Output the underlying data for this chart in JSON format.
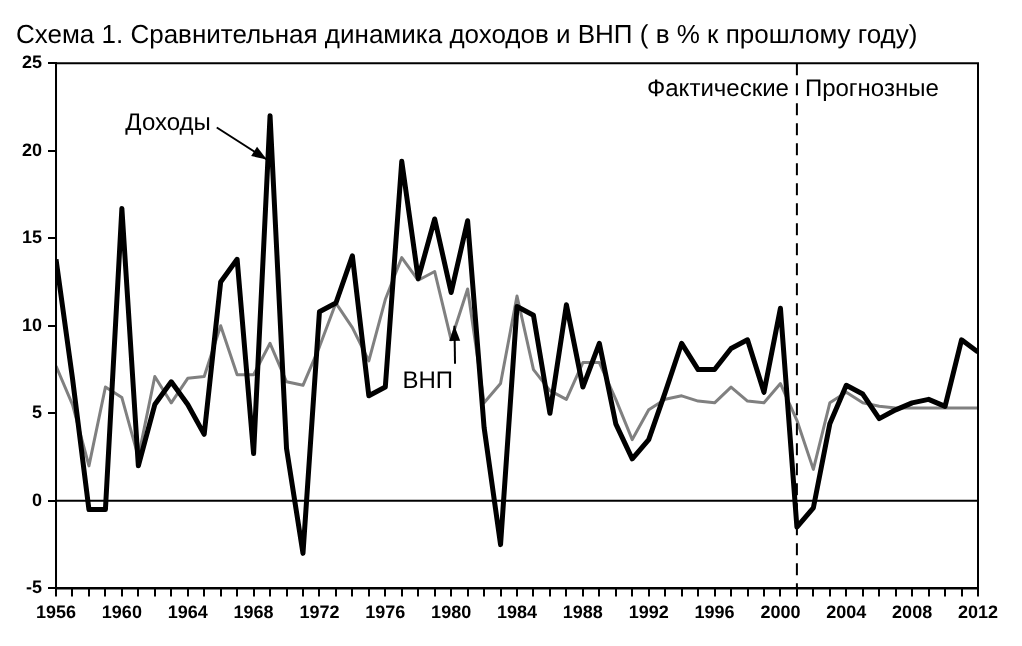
{
  "chart_data": {
    "type": "line",
    "title": "Схема 1. Сравнительная динамика доходов и ВНП ( в % к прошлому году)",
    "x": [
      1956,
      1957,
      1958,
      1959,
      1960,
      1961,
      1962,
      1963,
      1964,
      1965,
      1966,
      1967,
      1968,
      1969,
      1970,
      1971,
      1972,
      1973,
      1974,
      1975,
      1976,
      1977,
      1978,
      1979,
      1980,
      1981,
      1982,
      1983,
      1984,
      1985,
      1986,
      1987,
      1988,
      1989,
      1990,
      1991,
      1992,
      1993,
      1994,
      1995,
      1996,
      1997,
      1998,
      1999,
      2000,
      2001,
      2002,
      2003,
      2004,
      2005,
      2006,
      2007,
      2008,
      2009,
      2010,
      2011,
      2012
    ],
    "series": [
      {
        "color": "#000000",
        "values": [
          13.8,
          7,
          -0.5,
          -0.5,
          16.7,
          2,
          5.5,
          6.8,
          5.5,
          3.8,
          12.5,
          13.8,
          2.7,
          22,
          3,
          -3,
          10.8,
          11.3,
          14,
          6,
          6.5,
          19.4,
          12.7,
          16.1,
          11.9,
          16,
          4.2,
          -2.5,
          11.1,
          10.6,
          5,
          11.2,
          6.5,
          9,
          4.4,
          2.4,
          3.5,
          6.2,
          9,
          7.5,
          7.5,
          8.7,
          9.2,
          6.2,
          11,
          -1.5,
          -0.4,
          4.4,
          6.6,
          6.1,
          4.7,
          5.2,
          5.6,
          5.8,
          5.4,
          9.2,
          8.5
        ]
      },
      {
        "color": "#808080",
        "values": [
          7.7,
          5.5,
          2,
          6.5,
          5.9,
          2.5,
          7.1,
          5.6,
          7,
          7.1,
          10,
          7.2,
          7.2,
          9,
          6.8,
          6.6,
          8.8,
          11.3,
          9.9,
          8,
          11.5,
          13.9,
          12.6,
          13.1,
          9.2,
          12.1,
          5.6,
          6.7,
          11.7,
          7.5,
          6.3,
          5.8,
          7.9,
          7.9,
          5.8,
          3.5,
          5.2,
          5.8,
          6,
          5.7,
          5.6,
          6.5,
          5.7,
          5.6,
          6.7,
          4.6,
          1.8,
          5.6,
          6.2,
          5.6,
          5.4,
          5.3,
          5.3,
          5.3,
          5.3,
          5.3,
          5.3
        ]
      }
    ],
    "xlim": [
      1956,
      2012
    ],
    "xticks": [
      1956,
      {
        "value": 1957,
        "label": null
      },
      {
        "value": 1958,
        "label": null
      },
      {
        "value": 1959,
        "label": null
      },
      1960,
      {
        "value": 1961,
        "label": null
      },
      {
        "value": 1962,
        "label": null
      },
      {
        "value": 1963,
        "label": null
      },
      1964,
      {
        "value": 1965,
        "label": null
      },
      {
        "value": 1966,
        "label": null
      },
      {
        "value": 1967,
        "label": null
      },
      1968,
      {
        "value": 1969,
        "label": null
      },
      {
        "value": 1970,
        "label": null
      },
      {
        "value": 1971,
        "label": null
      },
      1972,
      {
        "value": 1973,
        "label": null
      },
      {
        "value": 1974,
        "label": null
      },
      {
        "value": 1975,
        "label": null
      },
      1976,
      {
        "value": 1977,
        "label": null
      },
      {
        "value": 1978,
        "label": null
      },
      {
        "value": 1979,
        "label": null
      },
      1980,
      {
        "value": 1981,
        "label": null
      },
      {
        "value": 1982,
        "label": null
      },
      {
        "value": 1983,
        "label": null
      },
      1984,
      {
        "value": 1985,
        "label": null
      },
      {
        "value": 1986,
        "label": null
      },
      {
        "value": 1987,
        "label": null
      },
      1988,
      {
        "value": 1989,
        "label": null
      },
      {
        "value": 1990,
        "label": null
      },
      {
        "value": 1991,
        "label": null
      },
      1992,
      {
        "value": 1993,
        "label": null
      },
      {
        "value": 1994,
        "label": null
      },
      {
        "value": 1995,
        "label": null
      },
      1996,
      {
        "value": 1997,
        "label": null
      },
      {
        "value": 1998,
        "label": null
      },
      {
        "value": 1999,
        "label": null
      },
      2000,
      {
        "value": 2001,
        "label": null
      },
      {
        "value": 2002,
        "label": null
      },
      {
        "value": 2003,
        "label": null
      },
      2004,
      {
        "value": 2005,
        "label": null
      },
      {
        "value": 2006,
        "label": null
      },
      {
        "value": 2007,
        "label": null
      },
      2008,
      {
        "value": 2009,
        "label": null
      },
      {
        "value": 2010,
        "label": null
      },
      {
        "value": 2011,
        "label": null
      },
      2012
    ],
    "ylim": [
      -5,
      25
    ],
    "yticks": [
      -5,
      0,
      5,
      10,
      15,
      20,
      25
    ],
    "ref_lines": [
      {
        "axis": "y",
        "value": 0,
        "color": "#000000",
        "line_style": "solid"
      },
      {
        "axis": "x",
        "value": 2001,
        "color": "#000000",
        "line_style": "dashed"
      }
    ],
    "annotations": [
      {
        "text": "Фактические",
        "x": 2001,
        "y": 23.5
      },
      {
        "text": "Прогнозные",
        "x": 2001,
        "y": 23.5
      },
      {
        "text": "Доходы",
        "x": 1968.8,
        "y": 19.5
      },
      {
        "text": "ВНП",
        "x": 1980.2,
        "y": 10
      }
    ],
    "grid": false,
    "legend": false,
    "marker": "none",
    "line_style": "solid"
  }
}
